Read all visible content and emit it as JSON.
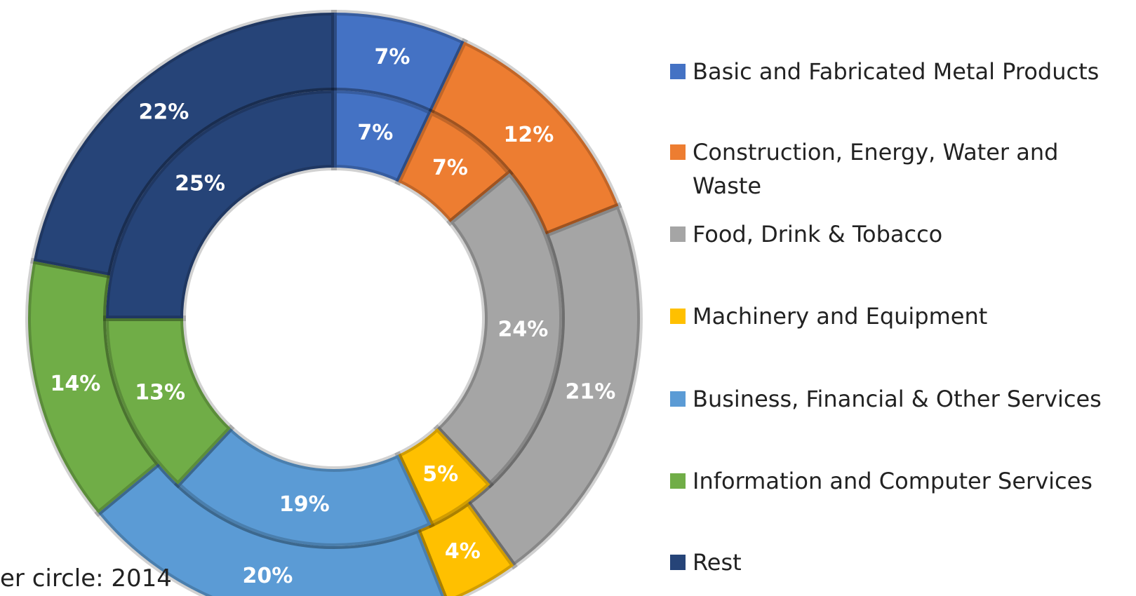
{
  "chart_data": {
    "type": "donut",
    "categories": [
      "Basic and Fabricated Metal Products",
      "Construction, Energy, Water and Waste",
      "Food, Drink & Tobacco",
      "Machinery and Equipment",
      "Business, Financial & Other Services",
      "Information and Computer Services",
      "Rest"
    ],
    "colors": [
      "#4472c4",
      "#ed7d31",
      "#a5a5a5",
      "#ffc000",
      "#5b9bd5",
      "#70ad47",
      "#264478"
    ],
    "series": [
      {
        "values": [
          7,
          12,
          21,
          4,
          20,
          14,
          22
        ],
        "value_labels": [
          "7%",
          "12%",
          "21%",
          "4%",
          "20%",
          "14%",
          "22%"
        ]
      },
      {
        "values": [
          7,
          7,
          24,
          5,
          19,
          13,
          25
        ],
        "value_labels": [
          "7%",
          "7%",
          "24%",
          "5%",
          "19%",
          "13%",
          "25%"
        ]
      }
    ],
    "annotation": "er circle: 2014"
  }
}
